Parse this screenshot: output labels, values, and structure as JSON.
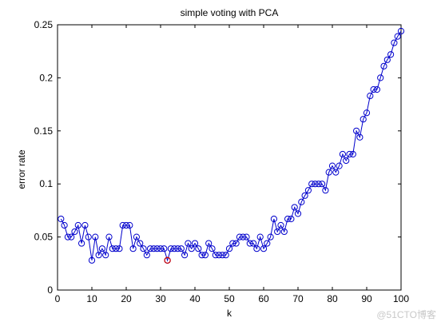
{
  "chart_data": {
    "type": "line",
    "title": "simple voting with PCA",
    "xlabel": "k",
    "ylabel": "error rate",
    "xlim": [
      0,
      100
    ],
    "ylim": [
      0,
      0.25
    ],
    "xticks": [
      "0",
      "10",
      "20",
      "30",
      "40",
      "50",
      "60",
      "70",
      "80",
      "90",
      "100"
    ],
    "yticks": [
      "0",
      "0.05",
      "0.1",
      "0.15",
      "0.2",
      "0.25"
    ],
    "grid": false,
    "series_color": "#0000cc",
    "highlight_color": "#cc0000",
    "highlight_point": {
      "x": 32,
      "y": 0.028
    },
    "x": [
      1,
      2,
      3,
      4,
      5,
      6,
      7,
      8,
      9,
      10,
      11,
      12,
      13,
      14,
      15,
      16,
      17,
      18,
      19,
      20,
      21,
      22,
      23,
      24,
      25,
      26,
      27,
      28,
      29,
      30,
      31,
      32,
      33,
      34,
      35,
      36,
      37,
      38,
      39,
      40,
      41,
      42,
      43,
      44,
      45,
      46,
      47,
      48,
      49,
      50,
      51,
      52,
      53,
      54,
      55,
      56,
      57,
      58,
      59,
      60,
      61,
      62,
      63,
      64,
      65,
      66,
      67,
      68,
      69,
      70,
      71,
      72,
      73,
      74,
      75,
      76,
      77,
      78,
      79,
      80,
      81,
      82,
      83,
      84,
      85,
      86,
      87,
      88,
      89,
      90,
      91,
      92,
      93,
      94,
      95,
      96,
      97,
      98,
      99,
      100
    ],
    "values": [
      0.067,
      0.061,
      0.05,
      0.05,
      0.055,
      0.061,
      0.044,
      0.061,
      0.05,
      0.028,
      0.05,
      0.033,
      0.039,
      0.033,
      0.05,
      0.039,
      0.039,
      0.039,
      0.061,
      0.061,
      0.061,
      0.039,
      0.05,
      0.044,
      0.039,
      0.033,
      0.039,
      0.039,
      0.039,
      0.039,
      0.039,
      0.028,
      0.039,
      0.039,
      0.039,
      0.039,
      0.033,
      0.044,
      0.039,
      0.044,
      0.039,
      0.033,
      0.033,
      0.044,
      0.039,
      0.033,
      0.033,
      0.033,
      0.033,
      0.039,
      0.044,
      0.044,
      0.05,
      0.05,
      0.05,
      0.044,
      0.044,
      0.039,
      0.05,
      0.039,
      0.044,
      0.05,
      0.067,
      0.055,
      0.061,
      0.055,
      0.067,
      0.067,
      0.078,
      0.072,
      0.083,
      0.089,
      0.094,
      0.1,
      0.1,
      0.1,
      0.1,
      0.094,
      0.111,
      0.117,
      0.111,
      0.117,
      0.128,
      0.122,
      0.128,
      0.128,
      0.15,
      0.144,
      0.161,
      0.167,
      0.183,
      0.189,
      0.189,
      0.2,
      0.211,
      0.217,
      0.222,
      0.233,
      0.239,
      0.244
    ]
  },
  "watermark": "@51CTO博客"
}
